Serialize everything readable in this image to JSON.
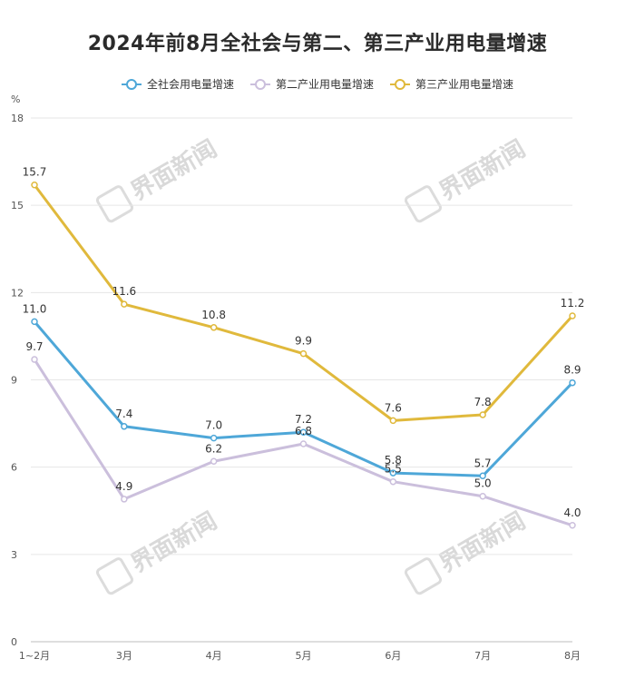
{
  "chart_data": {
    "type": "line",
    "title": "2024年前8月全社会与第二、第三产业用电量增速",
    "ylabel": "%",
    "ylim": [
      0,
      18
    ],
    "yticks": [
      0,
      3,
      6,
      9,
      12,
      15,
      18
    ],
    "categories": [
      "1~2月",
      "3月",
      "4月",
      "5月",
      "6月",
      "7月",
      "8月"
    ],
    "series": [
      {
        "name": "全社会用电量增速",
        "color": "#4ea7d8",
        "values": [
          11.0,
          7.4,
          7.0,
          7.2,
          5.8,
          5.7,
          8.9
        ],
        "labels": [
          "11.0",
          "7.4",
          "7.0",
          "7.2",
          "5.8",
          "5.7",
          "8.9"
        ]
      },
      {
        "name": "第二产业用电量增速",
        "color": "#cbbfdc",
        "values": [
          9.7,
          4.9,
          6.2,
          6.8,
          5.5,
          5.0,
          4.0
        ],
        "labels": [
          "9.7",
          "4.9",
          "6.2",
          "6.8",
          "5.5",
          "5.0",
          "4.0"
        ]
      },
      {
        "name": "第三产业用电量增速",
        "color": "#e0b93c",
        "values": [
          15.7,
          11.6,
          10.8,
          9.9,
          7.6,
          7.8,
          11.2
        ],
        "labels": [
          "15.7",
          "11.6",
          "10.8",
          "9.9",
          "7.6",
          "7.8",
          "11.2"
        ]
      }
    ],
    "grid": true,
    "legend": "top-center"
  },
  "watermark": {
    "text": "界面新闻"
  }
}
